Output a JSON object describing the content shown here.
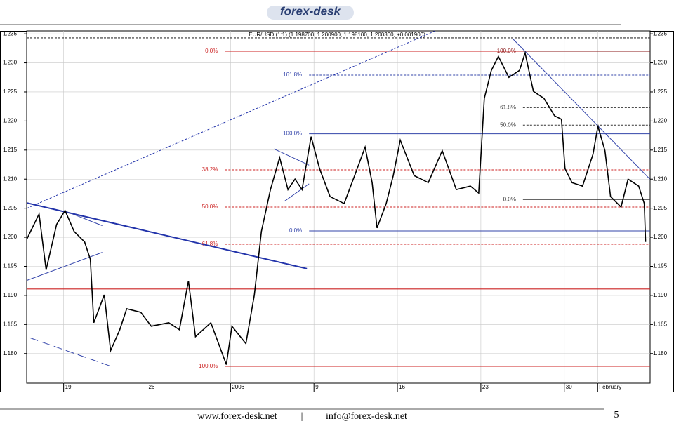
{
  "header": {
    "logo": "forex-desk"
  },
  "chart_data": {
    "type": "line",
    "title": "EUR/USD (1:1) (1.198700, 1.200900, 1.198100, 1.200300, +0.001900)",
    "x": [
      -3.06,
      -2.06,
      -1.47,
      -0.59,
      0.12,
      0.88,
      1.76,
      2.24,
      2.53,
      3.41,
      3.94,
      4.71,
      5.29,
      6.47,
      7.35,
      8.82,
      9.71,
      10.47,
      11.06,
      12.35,
      13.65,
      14.12,
      15.29,
      16,
      16.59,
      17.35,
      18.12,
      18.82,
      19.41,
      20,
      20.76,
      21.47,
      22.35,
      23.53,
      24.41,
      25.29,
      25.88,
      26.29,
      27.06,
      27.65,
      28.24,
      29.41,
      30.59,
      31.76,
      32.94,
      34.12,
      34.82,
      35.29,
      35.88,
      36.47,
      37.35,
      38.24,
      38.71,
      39.41,
      40.29,
      41.18,
      41.76,
      42.06,
      42.65,
      43.53,
      44.41,
      44.82,
      45.41,
      45.88,
      46.76,
      47.35,
      48.24,
      48.71,
      48.82
    ],
    "series": [
      {
        "name": "EUR/USD",
        "color": "#000000",
        "values": [
          1.1998,
          1.204,
          1.1944,
          1.2022,
          1.2046,
          1.201,
          1.1992,
          1.1962,
          1.1853,
          1.1901,
          1.1805,
          1.1841,
          1.1877,
          1.1871,
          1.1847,
          1.1853,
          1.1841,
          1.1925,
          1.1829,
          1.1853,
          1.1781,
          1.1847,
          1.1817,
          1.1901,
          1.201,
          1.2082,
          1.2137,
          1.2082,
          1.21,
          1.2082,
          1.2173,
          1.2118,
          1.207,
          1.2058,
          1.2106,
          1.2155,
          1.2094,
          1.2016,
          1.2058,
          1.2106,
          1.2167,
          1.2106,
          1.2094,
          1.2149,
          1.2082,
          1.2088,
          1.2076,
          1.2239,
          1.2287,
          1.2311,
          1.2275,
          1.2287,
          1.2317,
          1.2251,
          1.2239,
          1.2209,
          1.2203,
          1.2118,
          1.2094,
          1.2088,
          1.2143,
          1.2191,
          1.2149,
          1.207,
          1.2052,
          1.21,
          1.2088,
          1.2058,
          1.1992
        ]
      }
    ],
    "xlim": [
      -3.1,
      49.2
    ],
    "xticks": [
      {
        "value": 0,
        "label": "19"
      },
      {
        "value": 7,
        "label": "26"
      },
      {
        "value": 14,
        "label": "2006"
      },
      {
        "value": 21,
        "label": "9"
      },
      {
        "value": 28,
        "label": "16"
      },
      {
        "value": 35,
        "label": "23"
      },
      {
        "value": 42,
        "label": "30"
      },
      {
        "value": 44.8,
        "label": "February"
      }
    ],
    "ylim": [
      1.1749,
      1.2355
    ],
    "yticks": [
      {
        "value": 1.18,
        "label": "1.180"
      },
      1.185,
      {
        "value": 1.19,
        "label": "1.190"
      },
      1.195,
      {
        "value": 1.2,
        "label": "1.200"
      },
      1.205,
      {
        "value": 1.21,
        "label": "1.210"
      },
      1.215,
      {
        "value": 1.22,
        "label": "1.220"
      },
      1.225,
      {
        "value": 1.23,
        "label": "1.230"
      },
      1.235
    ],
    "grid": true,
    "levels": [
      {
        "label": "0.0%",
        "value": 1.232,
        "color": "#cc2222",
        "style": "solid",
        "from": 13.53
      },
      {
        "label": "38.2%",
        "value": 1.2116,
        "color": "#cc2222",
        "style": "dashed",
        "from": 13.53
      },
      {
        "label": "50.0%",
        "value": 1.2052,
        "color": "#cc2222",
        "style": "dashed",
        "from": 13.53
      },
      {
        "label": "61.8%",
        "value": 1.1988,
        "color": "#cc2222",
        "style": "dashed",
        "from": 13.53
      },
      {
        "label": "100.0%",
        "value": 1.1778,
        "color": "#cc2222",
        "style": "solid",
        "from": 13.53
      },
      {
        "label": "161.8%",
        "value": 1.2279,
        "color": "#3344aa",
        "style": "dashed",
        "from": 20.59
      },
      {
        "label": "100.0%",
        "value": 1.2178,
        "color": "#3344aa",
        "style": "solid",
        "from": 20.59
      },
      {
        "label": "0.0%",
        "value": 1.2011,
        "color": "#3344aa",
        "style": "solid",
        "from": 20.59
      },
      {
        "label": "100.0%",
        "value": 1.232,
        "color": "#8b1a1a",
        "style": "solid",
        "from": 38.53
      },
      {
        "label": "61.8%",
        "value": 1.2223,
        "color": "#333333",
        "style": "dashed",
        "from": 38.53
      },
      {
        "label": "50.0%",
        "value": 1.2193,
        "color": "#333333",
        "style": "dashed",
        "from": 38.53
      },
      {
        "label": "0.0%",
        "value": 1.2065,
        "color": "#333333",
        "style": "solid",
        "from": 38.53
      }
    ],
    "hlines": [
      {
        "value": 1.1911,
        "color": "#cc2222",
        "style": "solid"
      },
      {
        "value": 1.2343,
        "color": "#333333",
        "style": "dashed"
      }
    ],
    "trendlines": [
      {
        "x": [
          -3.06,
          20.41
        ],
        "y": [
          1.2059,
          1.1946
        ],
        "color": "#2233aa",
        "style": "solid"
      },
      {
        "x": [
          -3.06,
          31.18
        ],
        "y": [
          1.205,
          1.2355
        ],
        "color": "#2233aa",
        "style": "dashed"
      },
      {
        "x": [
          37.65,
          49.18
        ],
        "y": [
          1.2342,
          1.21
        ],
        "color": "#3344aa",
        "style": "solid"
      },
      {
        "x": [
          17.65,
          20.59
        ],
        "y": [
          1.2152,
          1.2124
        ],
        "color": "#3344aa",
        "style": "solid"
      },
      {
        "x": [
          18.53,
          20.59
        ],
        "y": [
          1.2062,
          1.2092
        ],
        "color": "#3344aa",
        "style": "solid"
      },
      {
        "x": [
          -3.06,
          3.24
        ],
        "y": [
          1.1926,
          1.1974
        ],
        "color": "#3344aa",
        "style": "solid"
      },
      {
        "x": [
          0,
          3.24
        ],
        "y": [
          1.2046,
          1.202
        ],
        "color": "#3344aa",
        "style": "solid"
      },
      {
        "x": [
          -2.82,
          4.12
        ],
        "y": [
          1.1827,
          1.1777
        ],
        "color": "#3344aa",
        "style": "longdash"
      }
    ]
  },
  "footer": {
    "website": "www.forex-desk.net",
    "separator": "|",
    "email": "info@forex-desk.net",
    "page": "5"
  }
}
